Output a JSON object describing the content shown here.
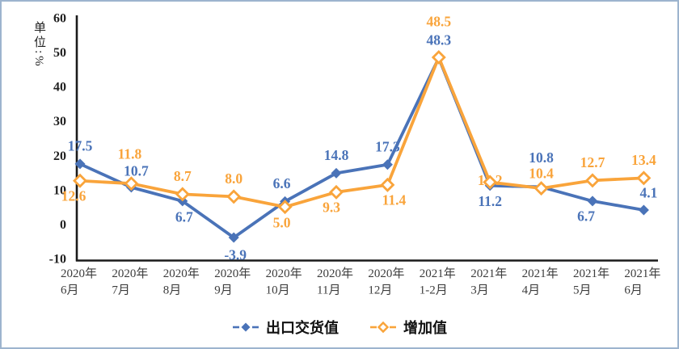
{
  "unit_label": "单位:%",
  "chart_data": {
    "type": "line",
    "title": "",
    "ylabel": "单位:%",
    "ylim": [
      -10,
      60
    ],
    "yticks": [
      60,
      50,
      40,
      30,
      20,
      10,
      0,
      -10
    ],
    "grid": false,
    "legend_position": "bottom-center",
    "categories": [
      [
        "2020年",
        "6月"
      ],
      [
        "2020年",
        "7月"
      ],
      [
        "2020年",
        "8月"
      ],
      [
        "2020年",
        "9月"
      ],
      [
        "2020年",
        "10月"
      ],
      [
        "2020年",
        "11月"
      ],
      [
        "2020年",
        "12月"
      ],
      [
        "2021年",
        "1-2月"
      ],
      [
        "2021年",
        "3月"
      ],
      [
        "2021年",
        "4月"
      ],
      [
        "2021年",
        "5月"
      ],
      [
        "2021年",
        "6月"
      ]
    ],
    "series": [
      {
        "key": "export-delivery-value",
        "name": "出口交货值",
        "color": "#4a73b8",
        "marker": "diamond-filled",
        "values": [
          17.5,
          10.7,
          6.7,
          -3.9,
          6.6,
          14.8,
          17.3,
          48.3,
          11.2,
          10.8,
          6.7,
          4.1
        ],
        "labels": [
          "17.5",
          "10.7",
          "6.7",
          "-3.9",
          "6.6",
          "14.8",
          "17.3",
          "48.3",
          "11.2",
          "10.8",
          "6.7",
          "4.1"
        ],
        "label_offsets": [
          [
            0,
            -22
          ],
          [
            6,
            -20
          ],
          [
            2,
            20
          ],
          [
            2,
            22
          ],
          [
            -4,
            -22
          ],
          [
            0,
            -22
          ],
          [
            0,
            -22
          ],
          [
            0,
            -22
          ],
          [
            0,
            20
          ],
          [
            0,
            -36
          ],
          [
            -8,
            19
          ],
          [
            6,
            -21
          ]
        ]
      },
      {
        "key": "added-value",
        "name": "增加值",
        "color": "#f9a43b",
        "marker": "diamond-open",
        "values": [
          12.6,
          11.8,
          8.7,
          8.0,
          5.0,
          9.3,
          11.4,
          48.5,
          12.2,
          10.4,
          12.7,
          13.4
        ],
        "labels": [
          "12.6",
          "11.8",
          "8.7",
          "8.0",
          "5.0",
          "9.3",
          "11.4",
          "48.5",
          "12.2",
          "10.4",
          "12.7",
          "13.4"
        ],
        "label_offsets": [
          [
            -8,
            19
          ],
          [
            -2,
            -36
          ],
          [
            0,
            -22
          ],
          [
            0,
            -22
          ],
          [
            -4,
            20
          ],
          [
            -6,
            19
          ],
          [
            8,
            19
          ],
          [
            0,
            -44
          ],
          [
            0,
            -2
          ],
          [
            0,
            -18
          ],
          [
            0,
            -22
          ],
          [
            0,
            -22
          ]
        ]
      }
    ]
  }
}
